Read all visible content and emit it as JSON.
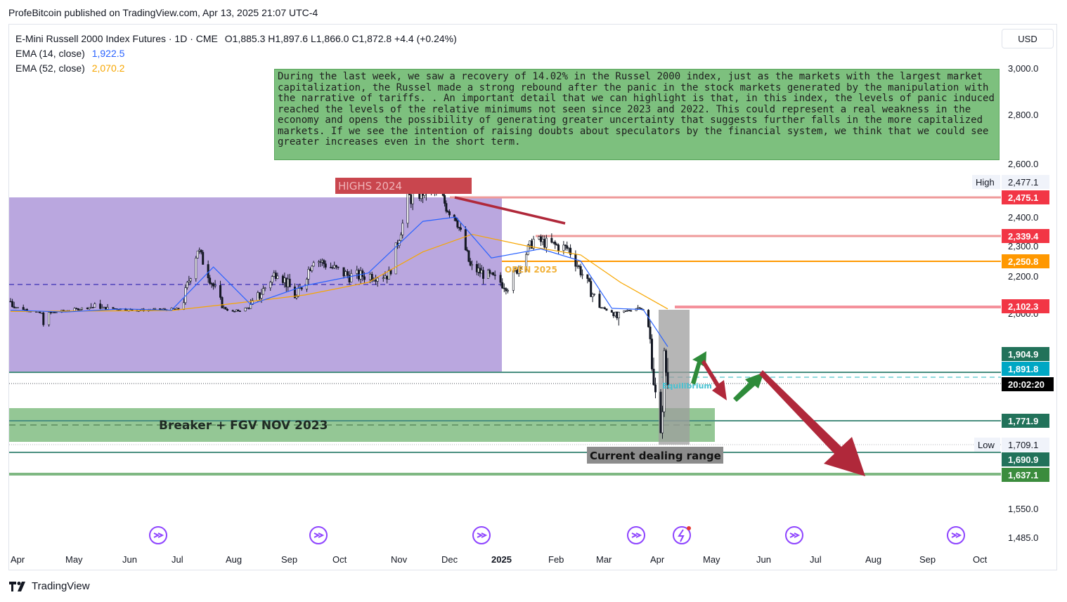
{
  "publisher": "ProfeBitcoin published on TradingView.com, Apr 13, 2025 21:07 UTC-4",
  "legend": {
    "symbol": "E-Mini Russell 2000 Index Futures · 1D · CME",
    "ohlc": "O1,885.3  H1,897.6  L1,866.0  C1,872.8  +4.4 (+0.24%)",
    "ema14_label": "EMA (14, close)",
    "ema14_value": "1,922.5",
    "ema52_label": "EMA (52, close)",
    "ema52_value": "2,070.2"
  },
  "currency": "USD",
  "note": "During the last week, we saw a recovery of 14.02% in the Russel 2000 index, just as the markets with the largest market capitalization, the Russel made a strong rebound after the panic in the stock markets generated by the manipulation with the narrative of tariffs. . An important detail that we can highlight is that, in this index, the levels of panic induced reached the levels of the relative minimums not seen since 2023 and 2022. This could represent a real weakness in the economy and opens the possibility of generating greater uncertainty that suggests further falls in the more capitalized markets. If we see the intention of raising doubts about speculators by the financial system, we think that we could see greater increases even in the short term.",
  "brand": "TradingView",
  "colors": {
    "range_box": "#b39ddb",
    "up_green": "#2e7d32",
    "down_red": "#c62828",
    "ema14": "#2962ff",
    "ema52": "#f7a600",
    "level_red": "#ef9a9a",
    "level_orange": "#ff9800",
    "level_teal": "#4a8f80"
  },
  "chart_data": {
    "type": "line",
    "title": "",
    "x_labels": [
      "Apr",
      "May",
      "Jun",
      "Jul",
      "Aug",
      "Sep",
      "Oct",
      "Nov",
      "Dec",
      "2025",
      "Feb",
      "Mar",
      "Apr",
      "May",
      "Jun",
      "Jul",
      "Aug",
      "Sep",
      "Oct"
    ],
    "y_ticks": [
      "3,000.0",
      "2,800.0",
      "2,600.0",
      "2,400.0",
      "2,300.0",
      "2,200.0",
      "2,000.0",
      "1,550.0",
      "1,485.0"
    ],
    "ylim": [
      1460,
      3050
    ],
    "price_path": [
      {
        "x": "2024-04-01",
        "y": 2120
      },
      {
        "x": "2024-04-19",
        "y": 1990
      },
      {
        "x": "2024-05-15",
        "y": 2100
      },
      {
        "x": "2024-06-10",
        "y": 2050
      },
      {
        "x": "2024-07-05",
        "y": 2065
      },
      {
        "x": "2024-07-16",
        "y": 2290
      },
      {
        "x": "2024-08-05",
        "y": 2020
      },
      {
        "x": "2024-08-30",
        "y": 2220
      },
      {
        "x": "2024-09-10",
        "y": 2130
      },
      {
        "x": "2024-09-20",
        "y": 2260
      },
      {
        "x": "2024-10-10",
        "y": 2200
      },
      {
        "x": "2024-10-31",
        "y": 2205
      },
      {
        "x": "2024-11-11",
        "y": 2440
      },
      {
        "x": "2024-11-25",
        "y": 2467
      },
      {
        "x": "2024-12-10",
        "y": 2400
      },
      {
        "x": "2024-12-19",
        "y": 2230
      },
      {
        "x": "2025-01-10",
        "y": 2170
      },
      {
        "x": "2025-01-24",
        "y": 2320
      },
      {
        "x": "2025-02-13",
        "y": 2290
      },
      {
        "x": "2025-03-06",
        "y": 2070
      },
      {
        "x": "2025-03-13",
        "y": 1990
      },
      {
        "x": "2025-03-26",
        "y": 2100
      },
      {
        "x": "2025-04-03",
        "y": 1880
      },
      {
        "x": "2025-04-07",
        "y": 1725
      },
      {
        "x": "2025-04-09",
        "y": 1900
      },
      {
        "x": "2025-04-11",
        "y": 1873
      }
    ],
    "ema14": [
      {
        "x": "2024-04-01",
        "y": 2050
      },
      {
        "x": "2024-05-01",
        "y": 2020
      },
      {
        "x": "2024-06-01",
        "y": 2070
      },
      {
        "x": "2024-07-01",
        "y": 2050
      },
      {
        "x": "2024-07-25",
        "y": 2230
      },
      {
        "x": "2024-08-15",
        "y": 2110
      },
      {
        "x": "2024-09-15",
        "y": 2170
      },
      {
        "x": "2024-10-20",
        "y": 2210
      },
      {
        "x": "2024-11-20",
        "y": 2385
      },
      {
        "x": "2024-12-10",
        "y": 2400
      },
      {
        "x": "2025-01-01",
        "y": 2260
      },
      {
        "x": "2025-01-28",
        "y": 2290
      },
      {
        "x": "2025-02-20",
        "y": 2250
      },
      {
        "x": "2025-03-10",
        "y": 2080
      },
      {
        "x": "2025-03-28",
        "y": 2060
      },
      {
        "x": "2025-04-11",
        "y": 1922
      }
    ],
    "ema52": [
      {
        "x": "2024-04-01",
        "y": 2030
      },
      {
        "x": "2024-06-01",
        "y": 2040
      },
      {
        "x": "2024-07-01",
        "y": 2045
      },
      {
        "x": "2024-08-01",
        "y": 2110
      },
      {
        "x": "2024-09-15",
        "y": 2140
      },
      {
        "x": "2024-10-20",
        "y": 2180
      },
      {
        "x": "2024-11-20",
        "y": 2280
      },
      {
        "x": "2024-12-20",
        "y": 2340
      },
      {
        "x": "2025-01-20",
        "y": 2300
      },
      {
        "x": "2025-02-20",
        "y": 2270
      },
      {
        "x": "2025-03-15",
        "y": 2180
      },
      {
        "x": "2025-04-11",
        "y": 2070
      }
    ],
    "price_labels": [
      {
        "label": "High",
        "value": "2,477.1"
      },
      {
        "value": "2,475.1",
        "color": "#f23645"
      },
      {
        "value": "2,339.4",
        "color": "#f23645"
      },
      {
        "value": "2,250.8",
        "color": "#ff9800"
      },
      {
        "value": "2,102.3",
        "color": "#f23645"
      },
      {
        "value": "1,904.9",
        "color": "#22725a"
      },
      {
        "value": "1,891.8",
        "color": "#00a7c4"
      },
      {
        "value": "20:02:20",
        "color": "#000000"
      },
      {
        "value": "1,771.9",
        "color": "#22725a"
      },
      {
        "label": "Low",
        "value": "1,709.1"
      },
      {
        "value": "1,690.9",
        "color": "#22725a"
      },
      {
        "value": "1,637.1",
        "color": "#3b8c3d"
      }
    ],
    "annotations": {
      "highs": "HIGHS 2024",
      "open": "OPEN 2025",
      "equilibrium": "Equilibrium",
      "breaker": "Breaker + FGV NOV 2023",
      "dealing": "Current dealing range"
    },
    "grid": false
  }
}
